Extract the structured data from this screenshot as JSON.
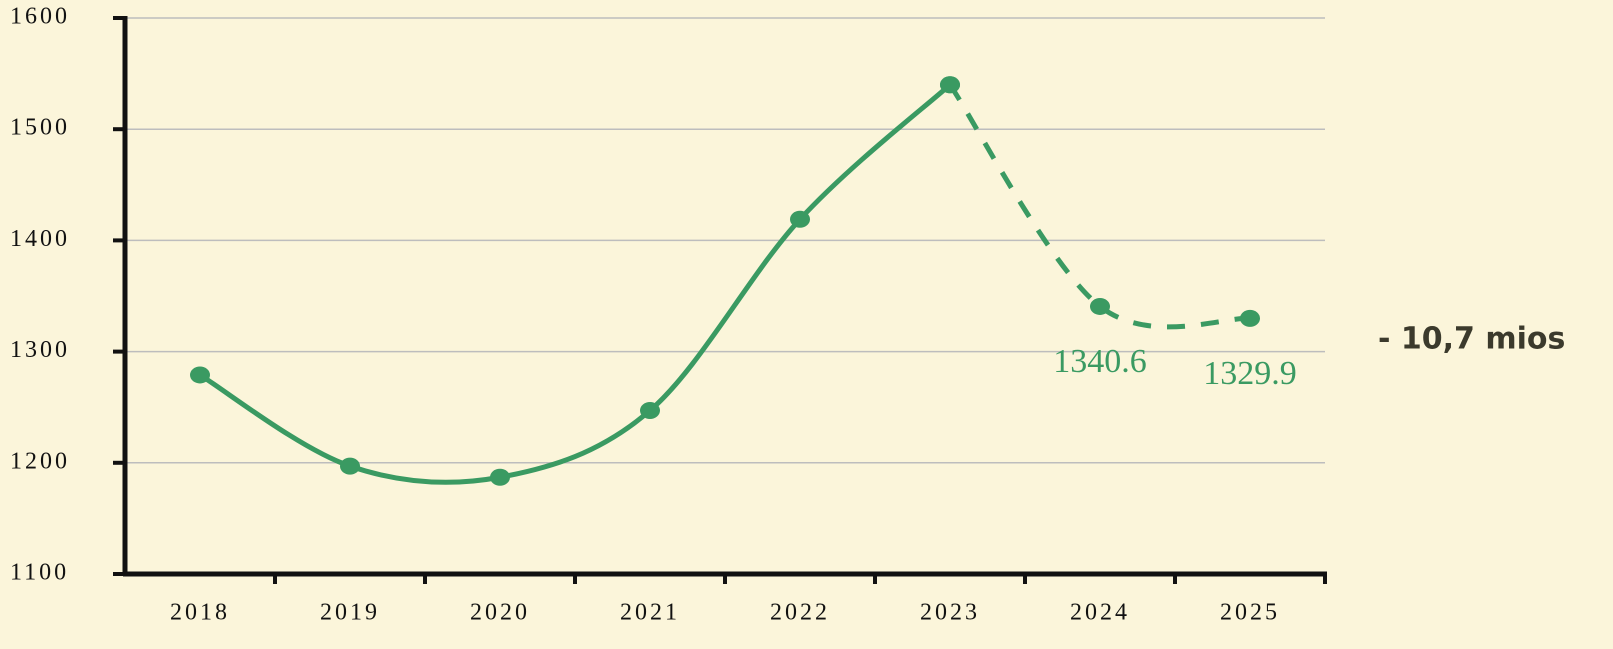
{
  "chart_data": {
    "type": "line",
    "categories": [
      "2018",
      "2019",
      "2020",
      "2021",
      "2022",
      "2023",
      "2024",
      "2025"
    ],
    "series": [
      {
        "color": "#3a9a62",
        "style": "solid",
        "values": [
          1279,
          1197,
          1187,
          1247,
          1419,
          1540,
          null,
          null
        ]
      },
      {
        "color": "#3a9a62",
        "style": "dashed",
        "values": [
          null,
          null,
          null,
          null,
          null,
          1540,
          1340.6,
          1329.9
        ],
        "data_labels": [
          6,
          7
        ]
      }
    ],
    "ylim": [
      1100,
      1600
    ],
    "yticks": [
      1100,
      1200,
      1300,
      1400,
      1500,
      1600
    ],
    "grid": true,
    "annotations": [
      "- 10,7 mios"
    ]
  }
}
